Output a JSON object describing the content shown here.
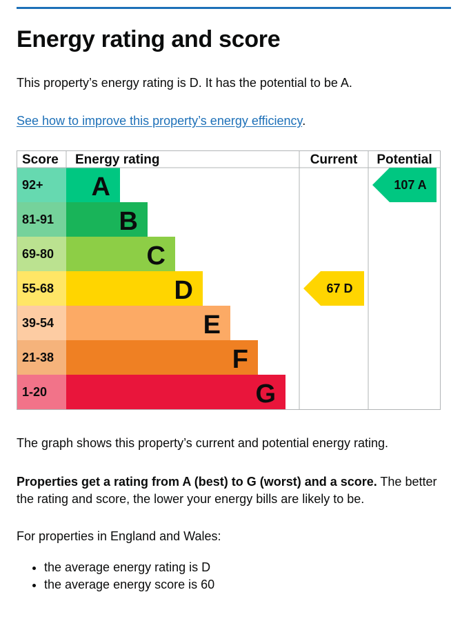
{
  "heading": "Energy rating and score",
  "intro": "This property’s energy rating is D. It has the potential to be A.",
  "improve_link": "See how to improve this property’s energy efficiency",
  "improve_suffix": ".",
  "chart_data": {
    "type": "bar",
    "headers": {
      "score": "Score",
      "rating": "Energy rating",
      "current": "Current",
      "potential": "Potential"
    },
    "bands": [
      {
        "letter": "A",
        "range": "92+",
        "color": "#00c781",
        "score_color": "#66d9b0"
      },
      {
        "letter": "B",
        "range": "81-91",
        "color": "#19b459",
        "score_color": "#75d29b"
      },
      {
        "letter": "C",
        "range": "69-80",
        "color": "#8dce46",
        "score_color": "#bbe290"
      },
      {
        "letter": "D",
        "range": "55-68",
        "color": "#ffd500",
        "score_color": "#ffe666"
      },
      {
        "letter": "E",
        "range": "39-54",
        "color": "#fcaa65",
        "score_color": "#fdcca3"
      },
      {
        "letter": "F",
        "range": "21-38",
        "color": "#ef8023",
        "score_color": "#f5b37b"
      },
      {
        "letter": "G",
        "range": "1-20",
        "color": "#e9153b",
        "score_color": "#f27389"
      }
    ],
    "current": {
      "score": 67,
      "letter": "D",
      "color": "#ffd500"
    },
    "potential": {
      "score": 107,
      "letter": "A",
      "color": "#00c781"
    }
  },
  "graph_text": "The graph shows this property’s current and potential energy rating.",
  "rating_bold": "Properties get a rating from A (best) to G (worst) and a score.",
  "rating_rest": " The better the rating and score, the lower your energy bills are likely to be.",
  "averages_heading": "For properties in England and Wales:",
  "averages": [
    "the average energy rating is D",
    "the average energy score is 60"
  ]
}
